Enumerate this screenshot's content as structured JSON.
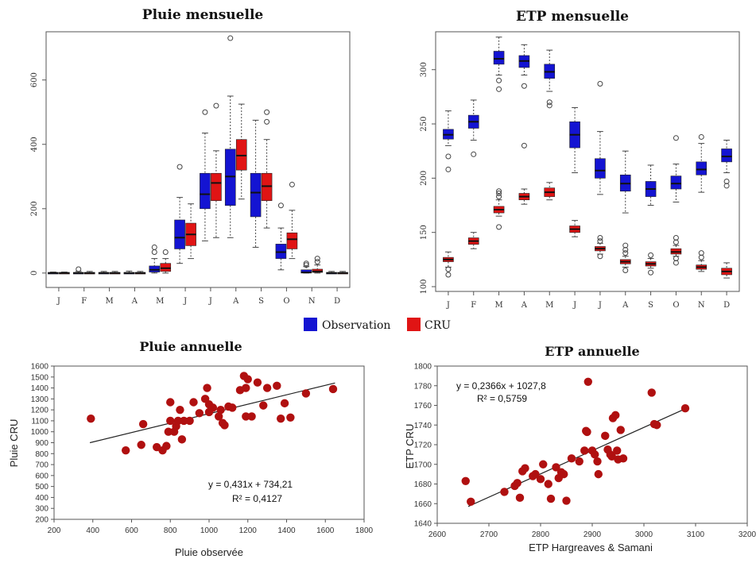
{
  "colors": {
    "observation": "#1414d2",
    "cru": "#e01414",
    "scatter_point": "#b01010",
    "axis": "#555555",
    "fit_line": "#222222"
  },
  "chart_data": [
    {
      "type": "boxplot",
      "title": "Pluie mensuelle",
      "categories": [
        "J",
        "F",
        "M",
        "A",
        "M",
        "J",
        "J",
        "A",
        "S",
        "O",
        "N",
        "D"
      ],
      "ylim": [
        -30,
        740
      ],
      "yticks": [
        "0",
        "200",
        "400",
        "600"
      ],
      "yticks_values": [
        0,
        200,
        400,
        600
      ],
      "series": [
        {
          "name": "Observation",
          "boxes": [
            {
              "min": 0,
              "q1": 0,
              "median": 0,
              "q3": 2,
              "max": 3,
              "outliers": []
            },
            {
              "min": 0,
              "q1": 0,
              "median": 0,
              "q3": 2,
              "max": 5,
              "outliers": [
                12
              ]
            },
            {
              "min": 0,
              "q1": 0,
              "median": 0,
              "q3": 2,
              "max": 5,
              "outliers": []
            },
            {
              "min": 0,
              "q1": 0,
              "median": 0,
              "q3": 2,
              "max": 6,
              "outliers": []
            },
            {
              "min": 0,
              "q1": 3,
              "median": 10,
              "q3": 22,
              "max": 45,
              "outliers": [
                65,
                80
              ]
            },
            {
              "min": 30,
              "q1": 75,
              "median": 110,
              "q3": 165,
              "max": 235,
              "outliers": [
                330
              ]
            },
            {
              "min": 100,
              "q1": 200,
              "median": 245,
              "q3": 310,
              "max": 435,
              "outliers": [
                500
              ]
            },
            {
              "min": 110,
              "q1": 210,
              "median": 300,
              "q3": 385,
              "max": 550,
              "outliers": [
                730
              ]
            },
            {
              "min": 80,
              "q1": 175,
              "median": 250,
              "q3": 310,
              "max": 475,
              "outliers": []
            },
            {
              "min": 10,
              "q1": 45,
              "median": 65,
              "q3": 90,
              "max": 140,
              "outliers": [
                210
              ]
            },
            {
              "min": 0,
              "q1": 0,
              "median": 2,
              "q3": 10,
              "max": 20,
              "outliers": [
                25,
                30
              ]
            },
            {
              "min": 0,
              "q1": 0,
              "median": 0,
              "q3": 2,
              "max": 5,
              "outliers": []
            }
          ]
        },
        {
          "name": "CRU",
          "boxes": [
            {
              "min": 0,
              "q1": 0,
              "median": 0,
              "q3": 2,
              "max": 3,
              "outliers": []
            },
            {
              "min": 0,
              "q1": 0,
              "median": 0,
              "q3": 2,
              "max": 5,
              "outliers": []
            },
            {
              "min": 0,
              "q1": 0,
              "median": 0,
              "q3": 2,
              "max": 5,
              "outliers": []
            },
            {
              "min": 0,
              "q1": 0,
              "median": 0,
              "q3": 2,
              "max": 5,
              "outliers": []
            },
            {
              "min": 0,
              "q1": 5,
              "median": 15,
              "q3": 30,
              "max": 45,
              "outliers": [
                65
              ]
            },
            {
              "min": 45,
              "q1": 85,
              "median": 120,
              "q3": 155,
              "max": 215,
              "outliers": []
            },
            {
              "min": 110,
              "q1": 225,
              "median": 280,
              "q3": 310,
              "max": 380,
              "outliers": [
                520
              ]
            },
            {
              "min": 230,
              "q1": 320,
              "median": 365,
              "q3": 415,
              "max": 525,
              "outliers": []
            },
            {
              "min": 140,
              "q1": 225,
              "median": 270,
              "q3": 310,
              "max": 415,
              "outliers": [
                470,
                500
              ]
            },
            {
              "min": 45,
              "q1": 75,
              "median": 105,
              "q3": 125,
              "max": 195,
              "outliers": [
                275
              ]
            },
            {
              "min": 0,
              "q1": 2,
              "median": 5,
              "q3": 12,
              "max": 25,
              "outliers": [
                35,
                45
              ]
            },
            {
              "min": 0,
              "q1": 0,
              "median": 0,
              "q3": 2,
              "max": 5,
              "outliers": []
            }
          ]
        }
      ]
    },
    {
      "type": "boxplot",
      "title": "ETP mensuelle",
      "categories": [
        "J",
        "F",
        "M",
        "A",
        "M",
        "J",
        "J",
        "A",
        "S",
        "O",
        "N",
        "D"
      ],
      "ylim": [
        100,
        332
      ],
      "yticks": [
        "100",
        "150",
        "200",
        "250",
        "300"
      ],
      "yticks_values": [
        100,
        150,
        200,
        250,
        300
      ],
      "series": [
        {
          "name": "Observation",
          "boxes": [
            {
              "min": 230,
              "q1": 236,
              "median": 240,
              "q3": 245,
              "max": 262,
              "outliers": [
                208,
                220
              ]
            },
            {
              "min": 235,
              "q1": 246,
              "median": 252,
              "q3": 258,
              "max": 272,
              "outliers": [
                222
              ]
            },
            {
              "min": 295,
              "q1": 305,
              "median": 310,
              "q3": 317,
              "max": 330,
              "outliers": [
                282,
                290
              ]
            },
            {
              "min": 295,
              "q1": 302,
              "median": 308,
              "q3": 313,
              "max": 323,
              "outliers": [
                230,
                285
              ]
            },
            {
              "min": 280,
              "q1": 292,
              "median": 298,
              "q3": 305,
              "max": 318,
              "outliers": [
                267,
                270
              ]
            },
            {
              "min": 205,
              "q1": 228,
              "median": 240,
              "q3": 252,
              "max": 265,
              "outliers": []
            },
            {
              "min": 185,
              "q1": 200,
              "median": 207,
              "q3": 218,
              "max": 243,
              "outliers": [
                287
              ]
            },
            {
              "min": 168,
              "q1": 188,
              "median": 195,
              "q3": 203,
              "max": 225,
              "outliers": []
            },
            {
              "min": 175,
              "q1": 183,
              "median": 190,
              "q3": 197,
              "max": 212,
              "outliers": []
            },
            {
              "min": 178,
              "q1": 190,
              "median": 195,
              "q3": 202,
              "max": 213,
              "outliers": [
                237
              ]
            },
            {
              "min": 187,
              "q1": 203,
              "median": 208,
              "q3": 215,
              "max": 232,
              "outliers": [
                238
              ]
            },
            {
              "min": 205,
              "q1": 215,
              "median": 220,
              "q3": 227,
              "max": 235,
              "outliers": [
                193,
                197
              ]
            }
          ]
        },
        {
          "name": "CRU",
          "boxes": [
            {
              "min": 118,
              "q1": 123,
              "median": 125,
              "q3": 127,
              "max": 132,
              "outliers": [
                111,
                116
              ]
            },
            {
              "min": 135,
              "q1": 139,
              "median": 142,
              "q3": 145,
              "max": 150,
              "outliers": []
            },
            {
              "min": 165,
              "q1": 168,
              "median": 171,
              "q3": 174,
              "max": 180,
              "outliers": [
                155,
                183,
                186,
                188
              ]
            },
            {
              "min": 176,
              "q1": 180,
              "median": 183,
              "q3": 186,
              "max": 190,
              "outliers": []
            },
            {
              "min": 180,
              "q1": 183,
              "median": 187,
              "q3": 191,
              "max": 196,
              "outliers": []
            },
            {
              "min": 146,
              "q1": 150,
              "median": 153,
              "q3": 156,
              "max": 161,
              "outliers": []
            },
            {
              "min": 130,
              "q1": 133,
              "median": 135,
              "q3": 137,
              "max": 140,
              "outliers": [
                128,
                142,
                145
              ]
            },
            {
              "min": 118,
              "q1": 121,
              "median": 123,
              "q3": 125,
              "max": 128,
              "outliers": [
                115,
                131,
                134,
                138
              ]
            },
            {
              "min": 117,
              "q1": 119,
              "median": 121,
              "q3": 123,
              "max": 126,
              "outliers": [
                113,
                129
              ]
            },
            {
              "min": 128,
              "q1": 130,
              "median": 132,
              "q3": 135,
              "max": 138,
              "outliers": [
                122,
                126,
                141,
                145
              ]
            },
            {
              "min": 114,
              "q1": 116,
              "median": 118,
              "q3": 120,
              "max": 124,
              "outliers": [
                127,
                131
              ]
            },
            {
              "min": 108,
              "q1": 111,
              "median": 114,
              "q3": 117,
              "max": 122,
              "outliers": []
            }
          ]
        }
      ]
    },
    {
      "type": "scatter",
      "title": "Pluie annuelle",
      "xlabel": "Pluie observée",
      "ylabel": "Pluie CRU",
      "xlim": [
        200,
        1800
      ],
      "ylim": [
        200,
        1600
      ],
      "xticks": [
        "200",
        "400",
        "600",
        "800",
        "1000",
        "1200",
        "1400",
        "1600",
        "1800"
      ],
      "xticks_values": [
        200,
        400,
        600,
        800,
        1000,
        1200,
        1400,
        1600,
        1800
      ],
      "yticks": [
        "200",
        "300",
        "400",
        "500",
        "600",
        "700",
        "800",
        "900",
        "1000",
        "1100",
        "1200",
        "1300",
        "1400",
        "1500",
        "1600"
      ],
      "yticks_values": [
        200,
        300,
        400,
        500,
        600,
        700,
        800,
        900,
        1000,
        1100,
        1200,
        1300,
        1400,
        1500,
        1600
      ],
      "equation": "y = 0,431x + 734,21",
      "r2": "R² = 0,4127",
      "fit": {
        "slope": 0.431,
        "intercept": 734.21,
        "x_range": [
          385,
          1650
        ]
      },
      "points": [
        [
          390,
          1120
        ],
        [
          570,
          830
        ],
        [
          650,
          880
        ],
        [
          660,
          1070
        ],
        [
          730,
          860
        ],
        [
          760,
          830
        ],
        [
          780,
          870
        ],
        [
          790,
          1000
        ],
        [
          800,
          1100
        ],
        [
          800,
          1270
        ],
        [
          820,
          1000
        ],
        [
          830,
          1050
        ],
        [
          840,
          1100
        ],
        [
          850,
          1200
        ],
        [
          860,
          930
        ],
        [
          870,
          1100
        ],
        [
          900,
          1100
        ],
        [
          920,
          1270
        ],
        [
          950,
          1170
        ],
        [
          980,
          1300
        ],
        [
          990,
          1400
        ],
        [
          1000,
          1180
        ],
        [
          1000,
          1250
        ],
        [
          1020,
          1220
        ],
        [
          1050,
          1140
        ],
        [
          1060,
          1200
        ],
        [
          1070,
          1080
        ],
        [
          1080,
          1060
        ],
        [
          1100,
          1230
        ],
        [
          1120,
          1220
        ],
        [
          1160,
          1380
        ],
        [
          1180,
          1510
        ],
        [
          1190,
          1400
        ],
        [
          1190,
          1140
        ],
        [
          1200,
          1480
        ],
        [
          1220,
          1140
        ],
        [
          1250,
          1450
        ],
        [
          1280,
          1240
        ],
        [
          1300,
          1400
        ],
        [
          1350,
          1420
        ],
        [
          1370,
          1120
        ],
        [
          1390,
          1260
        ],
        [
          1420,
          1130
        ],
        [
          1500,
          1350
        ],
        [
          1640,
          1390
        ]
      ]
    },
    {
      "type": "scatter",
      "title": "ETP annuelle",
      "xlabel": "ETP Hargreaves & Samani",
      "ylabel": "ETP CRU",
      "xlim": [
        2600,
        3200
      ],
      "ylim": [
        1640,
        1800
      ],
      "xticks": [
        "2600",
        "2700",
        "2800",
        "2900",
        "3000",
        "3100",
        "3200"
      ],
      "xticks_values": [
        2600,
        2700,
        2800,
        2900,
        3000,
        3100,
        3200
      ],
      "yticks": [
        "1640",
        "1660",
        "1680",
        "1700",
        "1720",
        "1740",
        "1760",
        "1780",
        "1800"
      ],
      "yticks_values": [
        1640,
        1660,
        1680,
        1700,
        1720,
        1740,
        1760,
        1780,
        1800
      ],
      "equation": "y = 0,2366x + 1027,8",
      "r2": "R² = 0,5759",
      "fit": {
        "slope": 0.2366,
        "intercept": 1027.8,
        "x_range": [
          2660,
          3080
        ]
      },
      "points": [
        [
          2655,
          1683
        ],
        [
          2665,
          1662
        ],
        [
          2730,
          1672
        ],
        [
          2750,
          1678
        ],
        [
          2755,
          1681
        ],
        [
          2760,
          1666
        ],
        [
          2765,
          1693
        ],
        [
          2770,
          1696
        ],
        [
          2785,
          1688
        ],
        [
          2790,
          1690
        ],
        [
          2800,
          1685
        ],
        [
          2805,
          1700
        ],
        [
          2815,
          1680
        ],
        [
          2820,
          1665
        ],
        [
          2830,
          1697
        ],
        [
          2835,
          1686
        ],
        [
          2840,
          1692
        ],
        [
          2845,
          1690
        ],
        [
          2850,
          1663
        ],
        [
          2860,
          1706
        ],
        [
          2875,
          1703
        ],
        [
          2885,
          1714
        ],
        [
          2888,
          1734
        ],
        [
          2890,
          1733
        ],
        [
          2892,
          1784
        ],
        [
          2900,
          1714
        ],
        [
          2905,
          1710
        ],
        [
          2910,
          1703
        ],
        [
          2912,
          1690
        ],
        [
          2925,
          1729
        ],
        [
          2930,
          1715
        ],
        [
          2935,
          1710
        ],
        [
          2938,
          1708
        ],
        [
          2940,
          1747
        ],
        [
          2945,
          1750
        ],
        [
          2948,
          1714
        ],
        [
          2950,
          1705
        ],
        [
          2955,
          1735
        ],
        [
          2960,
          1706
        ],
        [
          3015,
          1773
        ],
        [
          3020,
          1741
        ],
        [
          3025,
          1740
        ],
        [
          3080,
          1757
        ]
      ]
    }
  ],
  "legend": {
    "items": [
      {
        "label": "Observation",
        "color_key": "observation"
      },
      {
        "label": "CRU",
        "color_key": "cru"
      }
    ]
  }
}
